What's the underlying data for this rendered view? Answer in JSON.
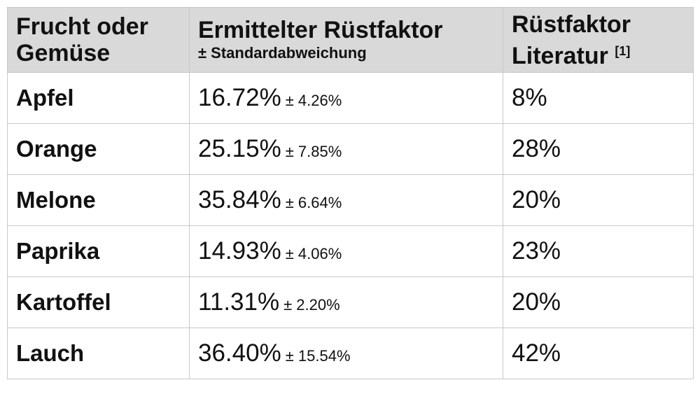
{
  "table": {
    "header": [
      {
        "lines": [
          "Frucht oder",
          "Gemüse"
        ]
      },
      {
        "title": "Ermittelter Rüstfaktor",
        "subtitle": "± Standardabweichung"
      },
      {
        "lines": [
          "Rüstfaktor",
          "Literatur"
        ],
        "note": "[1]"
      }
    ],
    "rows": [
      [
        "Apfel",
        "16.72%",
        "± 4.26%",
        "8%"
      ],
      [
        "Orange",
        "25.15%",
        "± 7.85%",
        "28%"
      ],
      [
        "Melone",
        "35.84%",
        "± 6.64%",
        "20%"
      ],
      [
        "Paprika",
        "14.93%",
        "± 4.06%",
        "23%"
      ],
      [
        "Kartoffel",
        "11.31%",
        "± 2.20%",
        "20%"
      ],
      [
        "Lauch",
        "36.40%",
        "± 15.54%",
        "42%"
      ]
    ]
  }
}
